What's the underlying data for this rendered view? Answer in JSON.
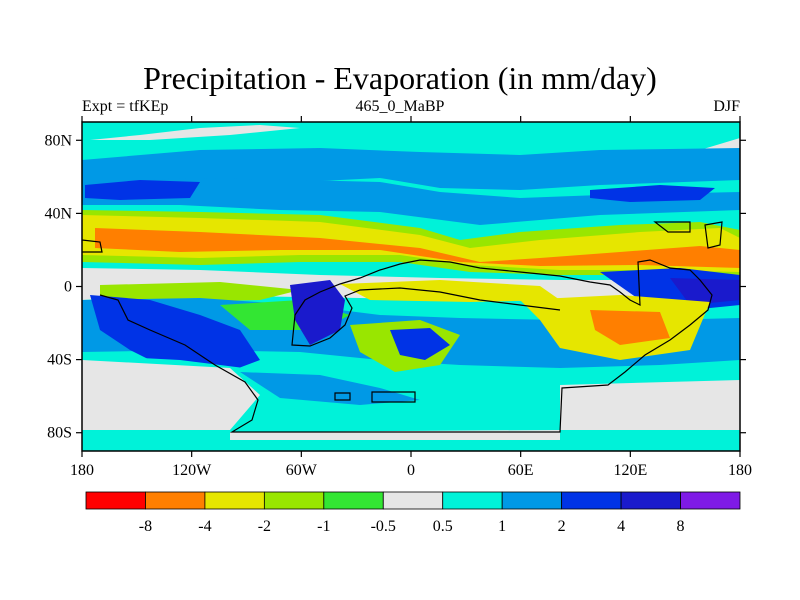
{
  "header": {
    "title": "Precipitation - Evaporation (in mm/day)",
    "left_label": "Expt = tfKEp",
    "center_label": "465_0_MaBP",
    "right_label": "DJF"
  },
  "axes": {
    "lat_labels": [
      "80N",
      "40N",
      "0",
      "40S",
      "80S"
    ],
    "lon_labels": [
      "180",
      "120W",
      "60W",
      "0",
      "60E",
      "120E",
      "180"
    ]
  },
  "colorbar": {
    "colors": [
      "#ff0000",
      "#ff7f00",
      "#e6e600",
      "#99e600",
      "#33e633",
      "#e6e6e6",
      "#00f2d9",
      "#0099e6",
      "#0033e6",
      "#1a1acc",
      "#7f1ae6"
    ],
    "labels": [
      "-8",
      "-4",
      "-2",
      "-1",
      "-0.5",
      "0.5",
      "1",
      "2",
      "4",
      "8"
    ]
  },
  "chart_data": {
    "type": "heatmap",
    "title": "Precipitation - Evaporation (in mm/day)",
    "subtitle": "465_0_MaBP",
    "season": "DJF",
    "experiment": "tfKEp",
    "x_range": [
      -180,
      180
    ],
    "y_range": [
      -90,
      90
    ],
    "levels": [
      -8,
      -4,
      -2,
      -1,
      -0.5,
      0.5,
      1,
      2,
      4,
      8
    ]
  }
}
